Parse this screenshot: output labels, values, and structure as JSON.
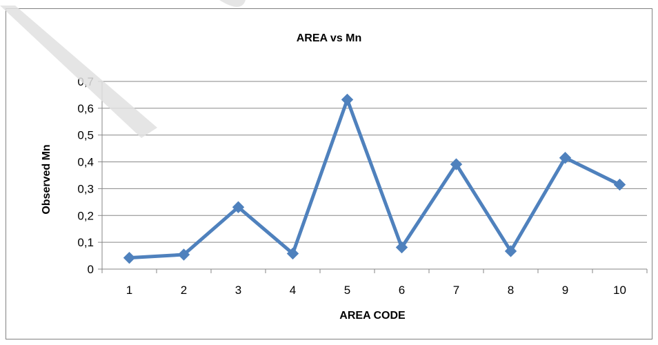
{
  "chart_data": {
    "type": "line",
    "title": "AREA vs Mn",
    "xlabel": "AREA CODE",
    "ylabel": "Observed Mn",
    "x": [
      "1",
      "2",
      "3",
      "4",
      "5",
      "6",
      "7",
      "8",
      "9",
      "10"
    ],
    "y_ticks": [
      "0",
      "0,1",
      "0,2",
      "0,3",
      "0,4",
      "0,5",
      "0,6",
      "0,7"
    ],
    "ylim": [
      0,
      0.7
    ],
    "grid": "horizontal",
    "legend": "none",
    "series": [
      {
        "values": [
          0.042,
          0.054,
          0.231,
          0.058,
          0.632,
          0.081,
          0.391,
          0.067,
          0.415,
          0.315
        ],
        "color": "#4f81bd",
        "marker": "diamond"
      }
    ]
  }
}
